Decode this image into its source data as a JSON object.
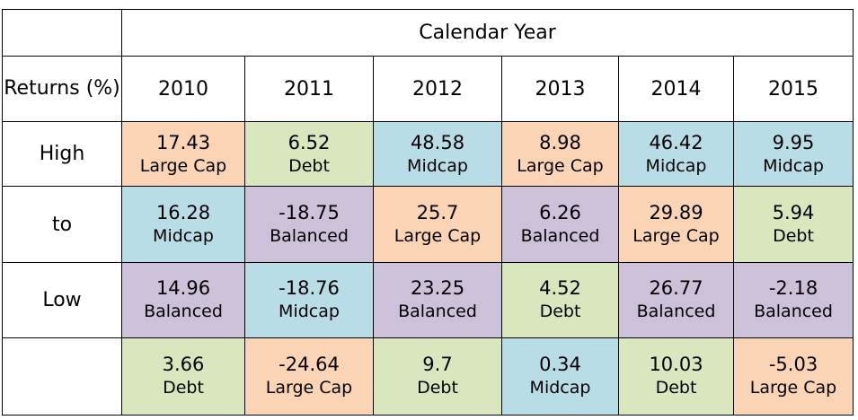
{
  "table": {
    "header_title": "Calendar Year",
    "returns_label": "Returns (%)",
    "years": [
      "2010",
      "2011",
      "2012",
      "2013",
      "2014",
      "2015"
    ],
    "side_labels": [
      "High",
      "to",
      "Low",
      ""
    ],
    "rows": [
      [
        {
          "value": "17.43",
          "asset": "Large Cap",
          "color": "#fad4b4"
        },
        {
          "value": "6.52",
          "asset": "Debt",
          "color": "#d9e6be"
        },
        {
          "value": "48.58",
          "asset": "Midcap",
          "color": "#b8dde7"
        },
        {
          "value": "8.98",
          "asset": "Large Cap",
          "color": "#fad4b4"
        },
        {
          "value": "46.42",
          "asset": "Midcap",
          "color": "#b8dde7"
        },
        {
          "value": "9.95",
          "asset": "Midcap",
          "color": "#b8dde7"
        }
      ],
      [
        {
          "value": "16.28",
          "asset": "Midcap",
          "color": "#b8dde7"
        },
        {
          "value": "-18.75",
          "asset": "Balanced",
          "color": "#cdc1da"
        },
        {
          "value": "25.7",
          "asset": "Large Cap",
          "color": "#fad4b4"
        },
        {
          "value": "6.26",
          "asset": "Balanced",
          "color": "#cdc1da"
        },
        {
          "value": "29.89",
          "asset": "Large Cap",
          "color": "#fad4b4"
        },
        {
          "value": "5.94",
          "asset": "Debt",
          "color": "#d9e6be"
        }
      ],
      [
        {
          "value": "14.96",
          "asset": "Balanced",
          "color": "#cdc1da"
        },
        {
          "value": "-18.76",
          "asset": "Midcap",
          "color": "#b8dde7"
        },
        {
          "value": "23.25",
          "asset": "Balanced",
          "color": "#cdc1da"
        },
        {
          "value": "4.52",
          "asset": "Debt",
          "color": "#d9e6be"
        },
        {
          "value": "26.77",
          "asset": "Balanced",
          "color": "#cdc1da"
        },
        {
          "value": "-2.18",
          "asset": "Balanced",
          "color": "#cdc1da"
        }
      ],
      [
        {
          "value": "3.66",
          "asset": "Debt",
          "color": "#d9e6be"
        },
        {
          "value": "-24.64",
          "asset": "Large Cap",
          "color": "#fad4b4"
        },
        {
          "value": "9.7",
          "asset": "Debt",
          "color": "#d9e6be"
        },
        {
          "value": "0.34",
          "asset": "Midcap",
          "color": "#b8dde7"
        },
        {
          "value": "10.03",
          "asset": "Debt",
          "color": "#d9e6be"
        },
        {
          "value": "-5.03",
          "asset": "Large Cap",
          "color": "#fad4b4"
        }
      ]
    ]
  }
}
